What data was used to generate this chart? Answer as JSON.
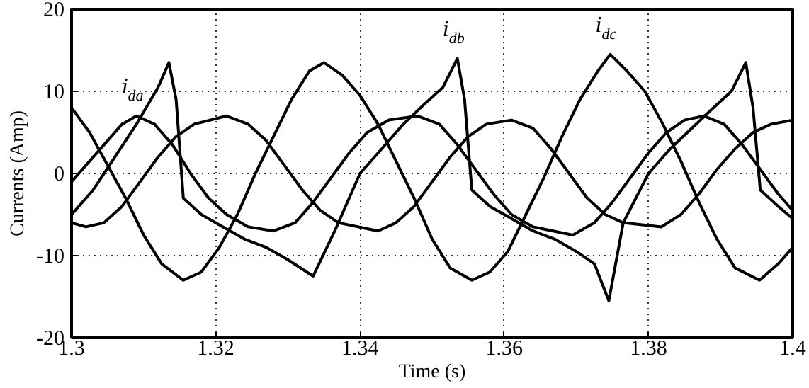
{
  "chart_data": {
    "type": "line",
    "xlabel": "Time (s)",
    "ylabel": "Currents (Amp)",
    "xlim": [
      1.3,
      1.4
    ],
    "xticks": [
      1.3,
      1.32,
      1.34,
      1.36,
      1.38,
      1.4
    ],
    "ylim": [
      -20,
      20
    ],
    "yticks": [
      -20,
      -10,
      0,
      10,
      20
    ],
    "grid": true,
    "line_style": "solid",
    "marker": "none",
    "series": [
      {
        "name": "i$_{da}$",
        "color": "#000000",
        "x": [
          1.3,
          1.3025,
          1.305,
          1.307,
          1.309,
          1.3115,
          1.314,
          1.3165,
          1.319,
          1.3215,
          1.3245,
          1.328,
          1.331,
          1.3335,
          1.336,
          1.3385,
          1.341,
          1.344,
          1.348,
          1.351,
          1.3535,
          1.356,
          1.3585,
          1.361,
          1.364,
          1.3695,
          1.3725,
          1.375,
          1.3775,
          1.38,
          1.3825,
          1.385,
          1.3877,
          1.3905,
          1.393,
          1.3955,
          1.398,
          1.4
        ],
        "values": [
          -1,
          1.5,
          4,
          6,
          7,
          6,
          3.5,
          0,
          -3,
          -5,
          -6.5,
          -7,
          -6,
          -3.5,
          -0.5,
          2.5,
          5,
          6.5,
          7,
          6,
          3.5,
          0.5,
          -2.5,
          -5,
          -6.5,
          -7.5,
          -6,
          -3.5,
          -0.5,
          2.5,
          5,
          6.5,
          7,
          6,
          3.5,
          0.5,
          -2.5,
          -4.5
        ]
      },
      {
        "name": "i$_{db}$",
        "color": "#000000",
        "x": [
          1.3,
          1.303,
          1.306,
          1.309,
          1.312,
          1.3135,
          1.3145,
          1.3155,
          1.318,
          1.321,
          1.324,
          1.327,
          1.33,
          1.3335,
          1.3365,
          1.34,
          1.343,
          1.346,
          1.349,
          1.3515,
          1.3535,
          1.3545,
          1.3555,
          1.358,
          1.361,
          1.364,
          1.367,
          1.37,
          1.3725,
          1.3745,
          1.3765,
          1.38,
          1.383,
          1.386,
          1.389,
          1.3915,
          1.3935,
          1.3945,
          1.3955,
          1.398,
          1.4
        ],
        "values": [
          -5,
          -2,
          2,
          6,
          10.5,
          13.5,
          9,
          -3,
          -5,
          -6.5,
          -8,
          -9,
          -10.5,
          -12.5,
          -7,
          0,
          3,
          6,
          8.5,
          10.5,
          14,
          9,
          -2,
          -4,
          -5.5,
          -7,
          -8,
          -9.5,
          -11,
          -15.5,
          -6,
          0,
          3,
          5.5,
          8,
          10,
          13.5,
          8,
          -2,
          -4,
          -5.5
        ]
      },
      {
        "name": "i$_{dc}$",
        "color": "#000000",
        "x": [
          1.3,
          1.3025,
          1.305,
          1.3075,
          1.31,
          1.3125,
          1.3155,
          1.318,
          1.3205,
          1.323,
          1.3255,
          1.328,
          1.3305,
          1.333,
          1.335,
          1.3375,
          1.34,
          1.3425,
          1.345,
          1.3475,
          1.35,
          1.3525,
          1.3555,
          1.358,
          1.3605,
          1.363,
          1.3655,
          1.368,
          1.3705,
          1.373,
          1.3747,
          1.377,
          1.3795,
          1.382,
          1.3845,
          1.387,
          1.3895,
          1.392,
          1.3954,
          1.398,
          1.4
        ],
        "values": [
          8,
          5,
          1,
          -3,
          -7.5,
          -11,
          -13,
          -12,
          -9,
          -5,
          0,
          4.5,
          9,
          12.5,
          13.5,
          12,
          9.5,
          6,
          1.5,
          -3,
          -8,
          -11.5,
          -13,
          -12,
          -9.5,
          -5,
          -0.5,
          4.5,
          9,
          12.5,
          14.5,
          12.5,
          10,
          6,
          1.5,
          -3.5,
          -8,
          -11.5,
          -13,
          -11,
          -9
        ]
      },
      {
        "color": "#000000",
        "x": [
          1.3,
          1.302,
          1.3045,
          1.307,
          1.3095,
          1.312,
          1.3145,
          1.317,
          1.3215,
          1.3245,
          1.327,
          1.3295,
          1.332,
          1.3345,
          1.337,
          1.3425,
          1.345,
          1.3475,
          1.35,
          1.3525,
          1.355,
          1.3575,
          1.361,
          1.364,
          1.3665,
          1.369,
          1.3715,
          1.374,
          1.3765,
          1.3818,
          1.3845,
          1.387,
          1.3895,
          1.392,
          1.3945,
          1.397,
          1.4
        ],
        "values": [
          -6,
          -6.5,
          -6,
          -4,
          -1,
          2,
          4.5,
          6,
          7,
          6,
          4,
          1,
          -2,
          -4.5,
          -6,
          -7,
          -6,
          -4,
          -1,
          2,
          4.5,
          6,
          6.5,
          5.5,
          3,
          0,
          -3,
          -5,
          -6,
          -6.5,
          -5,
          -2.5,
          0.5,
          3,
          5,
          6,
          6.5
        ]
      }
    ]
  }
}
